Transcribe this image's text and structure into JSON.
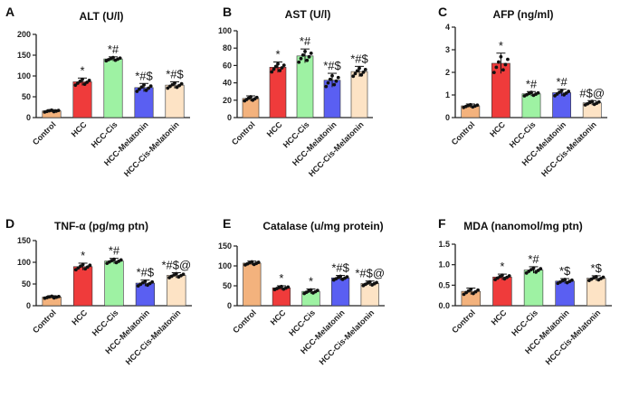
{
  "chart_data": [
    {
      "type": "bar",
      "letter": "A",
      "title": "ALT (U/l)",
      "categories": [
        "Control",
        "HCC",
        "HCC-Cis",
        "HCC-Melatonin",
        "HCC-Cis-Melatonin"
      ],
      "values": [
        16,
        86,
        141,
        72,
        78
      ],
      "errors": [
        3,
        9,
        5,
        10,
        8
      ],
      "annotations": [
        "",
        "*",
        "*#",
        "*#$",
        "*#$"
      ],
      "yticks": [
        0,
        50,
        100,
        150,
        200
      ],
      "ylim": [
        0,
        200
      ],
      "colors": [
        "#f3b27d",
        "#ef3b3b",
        "#9ef2a3",
        "#5a5ff2",
        "#fde3c5"
      ]
    },
    {
      "type": "bar",
      "letter": "B",
      "title": "AST (U/l)",
      "categories": [
        "Control",
        "HCC",
        "HCC-Cis",
        "HCC-Melatonin",
        "HCC-Cis-Melatonin"
      ],
      "values": [
        22,
        58,
        71,
        43,
        53
      ],
      "errors": [
        3,
        6,
        8,
        8,
        6
      ],
      "annotations": [
        "",
        "*",
        "*#",
        "*#$",
        "*#$"
      ],
      "yticks": [
        0,
        20,
        40,
        60,
        80,
        100
      ],
      "ylim": [
        0,
        100
      ],
      "colors": [
        "#f3b27d",
        "#ef3b3b",
        "#9ef2a3",
        "#5a5ff2",
        "#fde3c5"
      ]
    },
    {
      "type": "bar",
      "letter": "C",
      "title": "AFP (ng/ml)",
      "categories": [
        "Control",
        "HCC",
        "HCC-Cis",
        "HCC-Melatonin",
        "HCC-Cis-Melatonin"
      ],
      "values": [
        0.52,
        2.4,
        1.05,
        1.1,
        0.65
      ],
      "errors": [
        0.08,
        0.45,
        0.1,
        0.15,
        0.1
      ],
      "annotations": [
        "",
        "*",
        "*#",
        "*#",
        "#$@"
      ],
      "yticks": [
        0,
        1,
        2,
        3,
        4
      ],
      "ylim": [
        0,
        4
      ],
      "colors": [
        "#f3b27d",
        "#ef3b3b",
        "#9ef2a3",
        "#5a5ff2",
        "#fde3c5"
      ]
    },
    {
      "type": "bar",
      "letter": "D",
      "title": "TNF-α (pg/mg ptn)",
      "categories": [
        "Control",
        "HCC",
        "HCC-Cis",
        "HCC-Melatonin",
        "HCC-Cis-Melatonin"
      ],
      "values": [
        20,
        90,
        103,
        52,
        70
      ],
      "errors": [
        3,
        8,
        6,
        7,
        6
      ],
      "annotations": [
        "",
        "*",
        "*#",
        "*#$",
        "*#$@"
      ],
      "yticks": [
        0,
        50,
        100,
        150
      ],
      "ylim": [
        0,
        150
      ],
      "colors": [
        "#f3b27d",
        "#ef3b3b",
        "#9ef2a3",
        "#5a5ff2",
        "#fde3c5"
      ]
    },
    {
      "type": "bar",
      "letter": "E",
      "title": "Catalase (u/mg protein)",
      "categories": [
        "Control",
        "HCC",
        "HCC-Cis",
        "HCC-Melatonin",
        "HCC-Cis-Melatonin"
      ],
      "values": [
        107,
        45,
        36,
        70,
        56
      ],
      "errors": [
        5,
        5,
        6,
        6,
        6
      ],
      "annotations": [
        "",
        "*",
        "*",
        "*#$",
        "*#$@"
      ],
      "yticks": [
        0,
        50,
        100,
        150
      ],
      "ylim": [
        0,
        150
      ],
      "colors": [
        "#f3b27d",
        "#ef3b3b",
        "#9ef2a3",
        "#5a5ff2",
        "#fde3c5"
      ]
    },
    {
      "type": "bar",
      "letter": "F",
      "title": "MDA (nanomol/mg ptn)",
      "categories": [
        "Control",
        "HCC",
        "HCC-Cis",
        "HCC-Melatonin",
        "HCC-Cis-Melatonin"
      ],
      "values": [
        0.35,
        0.7,
        0.87,
        0.6,
        0.67
      ],
      "errors": [
        0.08,
        0.07,
        0.08,
        0.06,
        0.06
      ],
      "annotations": [
        "",
        "*",
        "*#",
        "*$",
        "*$"
      ],
      "yticks": [
        0,
        0.5,
        1.0,
        1.5
      ],
      "ylim": [
        0,
        1.5
      ],
      "colors": [
        "#f3b27d",
        "#ef3b3b",
        "#9ef2a3",
        "#5a5ff2",
        "#fde3c5"
      ]
    }
  ]
}
